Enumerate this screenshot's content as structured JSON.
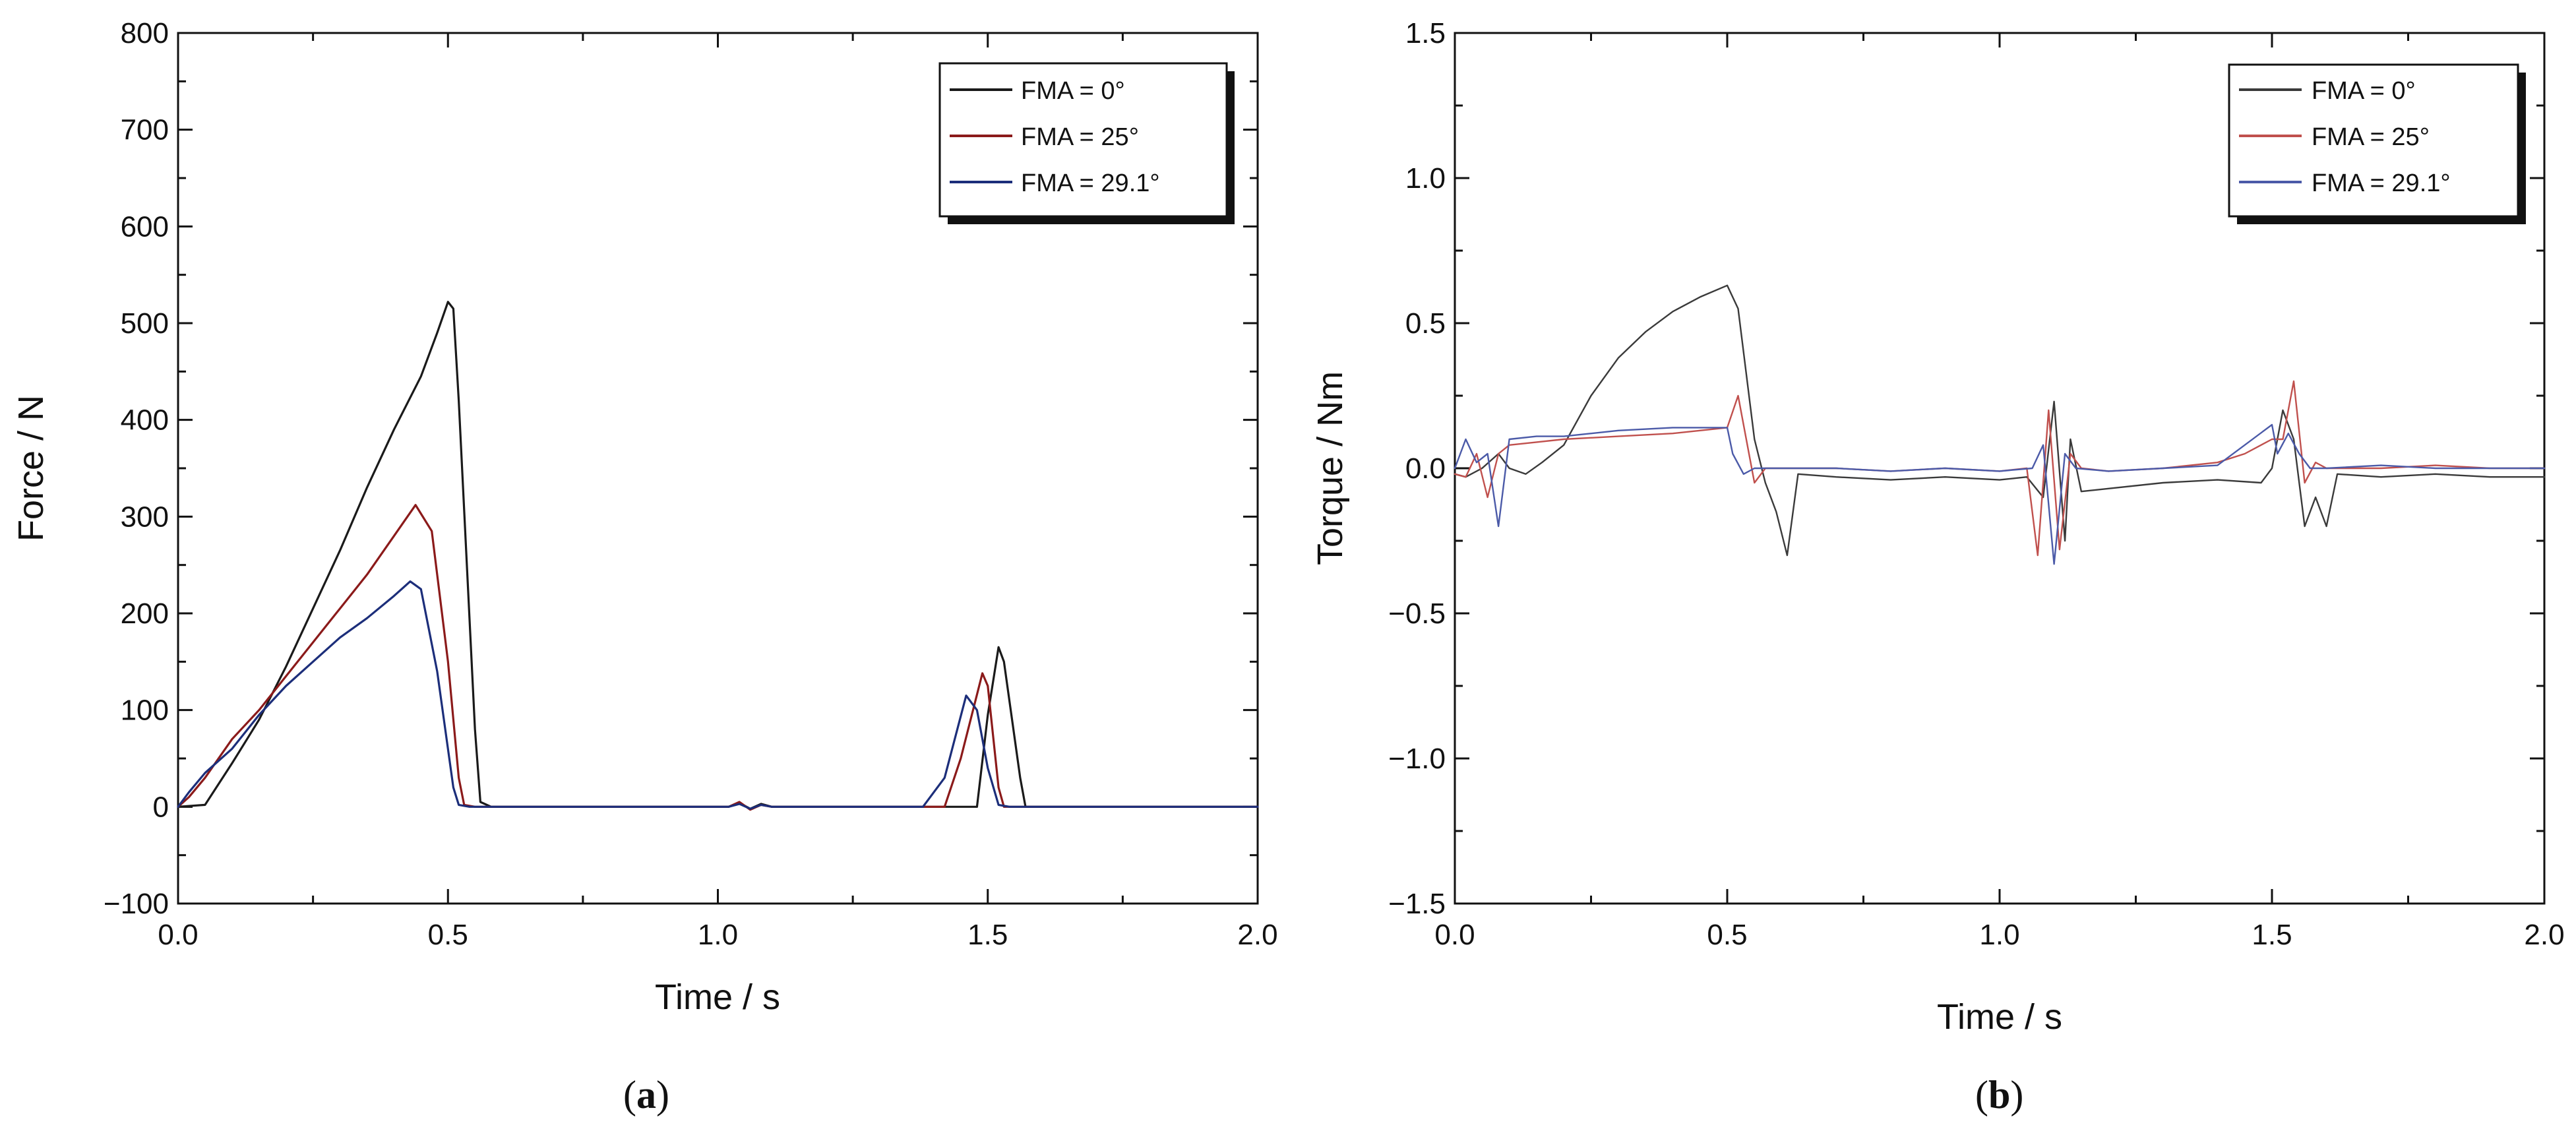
{
  "chart_data": [
    {
      "type": "line",
      "panel_label": "(a)",
      "panel_letter": "a",
      "xlabel": "Time / s",
      "ylabel": "Force / N",
      "xlim": [
        0,
        2.0
      ],
      "ylim": [
        -100,
        800
      ],
      "xticks": [
        0.0,
        0.5,
        1.0,
        1.5,
        2.0
      ],
      "xtick_labels": [
        "0.0",
        "0.5",
        "1.0",
        "1.5",
        "2.0"
      ],
      "yticks": [
        -100,
        0,
        100,
        200,
        300,
        400,
        500,
        600,
        700,
        800
      ],
      "ytick_labels": [
        "−100",
        "0",
        "100",
        "200",
        "300",
        "400",
        "500",
        "600",
        "700",
        "800"
      ],
      "legend_position": "top-right",
      "series": [
        {
          "name": "FMA = 0°",
          "color": "#1a1a1a",
          "points": [
            [
              0.0,
              0
            ],
            [
              0.05,
              2
            ],
            [
              0.1,
              45
            ],
            [
              0.15,
              90
            ],
            [
              0.2,
              145
            ],
            [
              0.25,
              205
            ],
            [
              0.3,
              265
            ],
            [
              0.35,
              330
            ],
            [
              0.4,
              390
            ],
            [
              0.45,
              445
            ],
            [
              0.48,
              490
            ],
            [
              0.5,
              522
            ],
            [
              0.51,
              515
            ],
            [
              0.52,
              420
            ],
            [
              0.55,
              80
            ],
            [
              0.56,
              5
            ],
            [
              0.58,
              0
            ],
            [
              1.02,
              0
            ],
            [
              1.04,
              4
            ],
            [
              1.06,
              -2
            ],
            [
              1.08,
              3
            ],
            [
              1.1,
              0
            ],
            [
              1.48,
              0
            ],
            [
              1.5,
              95
            ],
            [
              1.52,
              165
            ],
            [
              1.53,
              150
            ],
            [
              1.56,
              30
            ],
            [
              1.57,
              0
            ],
            [
              2.0,
              0
            ]
          ]
        },
        {
          "name": "FMA = 25°",
          "color": "#8b1a1a",
          "points": [
            [
              0.0,
              0
            ],
            [
              0.02,
              10
            ],
            [
              0.05,
              30
            ],
            [
              0.1,
              70
            ],
            [
              0.15,
              100
            ],
            [
              0.2,
              135
            ],
            [
              0.25,
              170
            ],
            [
              0.3,
              205
            ],
            [
              0.35,
              240
            ],
            [
              0.4,
              280
            ],
            [
              0.44,
              312
            ],
            [
              0.47,
              285
            ],
            [
              0.5,
              150
            ],
            [
              0.52,
              30
            ],
            [
              0.53,
              2
            ],
            [
              0.55,
              0
            ],
            [
              1.02,
              0
            ],
            [
              1.04,
              5
            ],
            [
              1.06,
              -3
            ],
            [
              1.08,
              2
            ],
            [
              1.1,
              0
            ],
            [
              1.42,
              0
            ],
            [
              1.45,
              50
            ],
            [
              1.49,
              138
            ],
            [
              1.5,
              125
            ],
            [
              1.52,
              20
            ],
            [
              1.53,
              0
            ],
            [
              2.0,
              0
            ]
          ]
        },
        {
          "name": "FMA = 29.1°",
          "color": "#1c2e7a",
          "points": [
            [
              0.0,
              0
            ],
            [
              0.02,
              15
            ],
            [
              0.05,
              35
            ],
            [
              0.1,
              60
            ],
            [
              0.15,
              95
            ],
            [
              0.2,
              125
            ],
            [
              0.25,
              150
            ],
            [
              0.3,
              175
            ],
            [
              0.35,
              195
            ],
            [
              0.4,
              218
            ],
            [
              0.43,
              233
            ],
            [
              0.45,
              225
            ],
            [
              0.48,
              140
            ],
            [
              0.51,
              20
            ],
            [
              0.52,
              2
            ],
            [
              0.54,
              0
            ],
            [
              1.02,
              0
            ],
            [
              1.04,
              3
            ],
            [
              1.06,
              -2
            ],
            [
              1.08,
              2
            ],
            [
              1.1,
              0
            ],
            [
              1.38,
              0
            ],
            [
              1.42,
              30
            ],
            [
              1.46,
              115
            ],
            [
              1.48,
              100
            ],
            [
              1.5,
              40
            ],
            [
              1.52,
              2
            ],
            [
              1.54,
              0
            ],
            [
              2.0,
              0
            ]
          ]
        }
      ]
    },
    {
      "type": "line",
      "panel_label": "(b)",
      "panel_letter": "b",
      "xlabel": "Time / s",
      "ylabel": "Torque / Nm",
      "xlim": [
        0,
        2.0
      ],
      "ylim": [
        -1.5,
        1.5
      ],
      "xticks": [
        0.0,
        0.5,
        1.0,
        1.5,
        2.0
      ],
      "xtick_labels": [
        "0.0",
        "0.5",
        "1.0",
        "1.5",
        "2.0"
      ],
      "yticks": [
        -1.5,
        -1.0,
        -0.5,
        0.0,
        0.5,
        1.0,
        1.5
      ],
      "ytick_labels": [
        "−1.5",
        "−1.0",
        "−0.5",
        "0.0",
        "0.5",
        "1.0",
        "1.5"
      ],
      "legend_position": "top-right",
      "series": [
        {
          "name": "FMA = 0°",
          "color": "#3a3a3a",
          "points": [
            [
              0.0,
              -0.02
            ],
            [
              0.02,
              -0.03
            ],
            [
              0.05,
              0.0
            ],
            [
              0.08,
              0.05
            ],
            [
              0.1,
              0.0
            ],
            [
              0.13,
              -0.02
            ],
            [
              0.16,
              0.02
            ],
            [
              0.2,
              0.08
            ],
            [
              0.25,
              0.25
            ],
            [
              0.3,
              0.38
            ],
            [
              0.35,
              0.47
            ],
            [
              0.4,
              0.54
            ],
            [
              0.45,
              0.59
            ],
            [
              0.5,
              0.63
            ],
            [
              0.52,
              0.55
            ],
            [
              0.55,
              0.1
            ],
            [
              0.57,
              -0.05
            ],
            [
              0.59,
              -0.15
            ],
            [
              0.61,
              -0.3
            ],
            [
              0.63,
              -0.02
            ],
            [
              0.7,
              -0.03
            ],
            [
              0.8,
              -0.04
            ],
            [
              0.9,
              -0.03
            ],
            [
              1.0,
              -0.04
            ],
            [
              1.05,
              -0.03
            ],
            [
              1.08,
              -0.1
            ],
            [
              1.1,
              0.23
            ],
            [
              1.12,
              -0.25
            ],
            [
              1.13,
              0.1
            ],
            [
              1.15,
              -0.08
            ],
            [
              1.2,
              -0.07
            ],
            [
              1.3,
              -0.05
            ],
            [
              1.4,
              -0.04
            ],
            [
              1.48,
              -0.05
            ],
            [
              1.5,
              0.0
            ],
            [
              1.52,
              0.2
            ],
            [
              1.54,
              0.1
            ],
            [
              1.56,
              -0.2
            ],
            [
              1.58,
              -0.1
            ],
            [
              1.6,
              -0.2
            ],
            [
              1.62,
              -0.02
            ],
            [
              1.7,
              -0.03
            ],
            [
              1.8,
              -0.02
            ],
            [
              1.9,
              -0.03
            ],
            [
              2.0,
              -0.03
            ]
          ]
        },
        {
          "name": "FMA = 25°",
          "color": "#c0504d",
          "points": [
            [
              0.0,
              -0.02
            ],
            [
              0.02,
              -0.03
            ],
            [
              0.04,
              0.05
            ],
            [
              0.06,
              -0.1
            ],
            [
              0.08,
              0.05
            ],
            [
              0.1,
              0.08
            ],
            [
              0.15,
              0.09
            ],
            [
              0.2,
              0.1
            ],
            [
              0.3,
              0.11
            ],
            [
              0.4,
              0.12
            ],
            [
              0.5,
              0.14
            ],
            [
              0.52,
              0.25
            ],
            [
              0.54,
              0.05
            ],
            [
              0.55,
              -0.05
            ],
            [
              0.57,
              0.0
            ],
            [
              0.6,
              0.0
            ],
            [
              0.7,
              0.0
            ],
            [
              0.8,
              -0.01
            ],
            [
              0.9,
              0.0
            ],
            [
              1.0,
              -0.01
            ],
            [
              1.05,
              0.0
            ],
            [
              1.07,
              -0.3
            ],
            [
              1.09,
              0.2
            ],
            [
              1.11,
              -0.28
            ],
            [
              1.13,
              0.05
            ],
            [
              1.15,
              0.0
            ],
            [
              1.2,
              -0.01
            ],
            [
              1.3,
              0.0
            ],
            [
              1.4,
              0.02
            ],
            [
              1.45,
              0.05
            ],
            [
              1.5,
              0.1
            ],
            [
              1.52,
              0.1
            ],
            [
              1.54,
              0.3
            ],
            [
              1.56,
              -0.05
            ],
            [
              1.58,
              0.02
            ],
            [
              1.6,
              0.0
            ],
            [
              1.7,
              0.0
            ],
            [
              1.8,
              0.01
            ],
            [
              1.9,
              0.0
            ],
            [
              2.0,
              0.0
            ]
          ]
        },
        {
          "name": "FMA = 29.1°",
          "color": "#4b5aa8",
          "points": [
            [
              0.0,
              0.0
            ],
            [
              0.02,
              0.1
            ],
            [
              0.04,
              0.02
            ],
            [
              0.06,
              0.05
            ],
            [
              0.08,
              -0.2
            ],
            [
              0.1,
              0.1
            ],
            [
              0.15,
              0.11
            ],
            [
              0.2,
              0.11
            ],
            [
              0.3,
              0.13
            ],
            [
              0.4,
              0.14
            ],
            [
              0.45,
              0.14
            ],
            [
              0.5,
              0.14
            ],
            [
              0.51,
              0.05
            ],
            [
              0.53,
              -0.02
            ],
            [
              0.55,
              0.0
            ],
            [
              0.6,
              0.0
            ],
            [
              0.7,
              0.0
            ],
            [
              0.8,
              -0.01
            ],
            [
              0.9,
              0.0
            ],
            [
              1.0,
              -0.01
            ],
            [
              1.06,
              0.0
            ],
            [
              1.08,
              0.08
            ],
            [
              1.1,
              -0.33
            ],
            [
              1.12,
              0.05
            ],
            [
              1.14,
              0.0
            ],
            [
              1.2,
              -0.01
            ],
            [
              1.3,
              0.0
            ],
            [
              1.4,
              0.01
            ],
            [
              1.45,
              0.08
            ],
            [
              1.5,
              0.15
            ],
            [
              1.51,
              0.05
            ],
            [
              1.53,
              0.12
            ],
            [
              1.55,
              0.05
            ],
            [
              1.57,
              0.0
            ],
            [
              1.6,
              0.0
            ],
            [
              1.7,
              0.01
            ],
            [
              1.8,
              0.0
            ],
            [
              1.9,
              0.0
            ],
            [
              2.0,
              0.0
            ]
          ]
        }
      ]
    }
  ]
}
